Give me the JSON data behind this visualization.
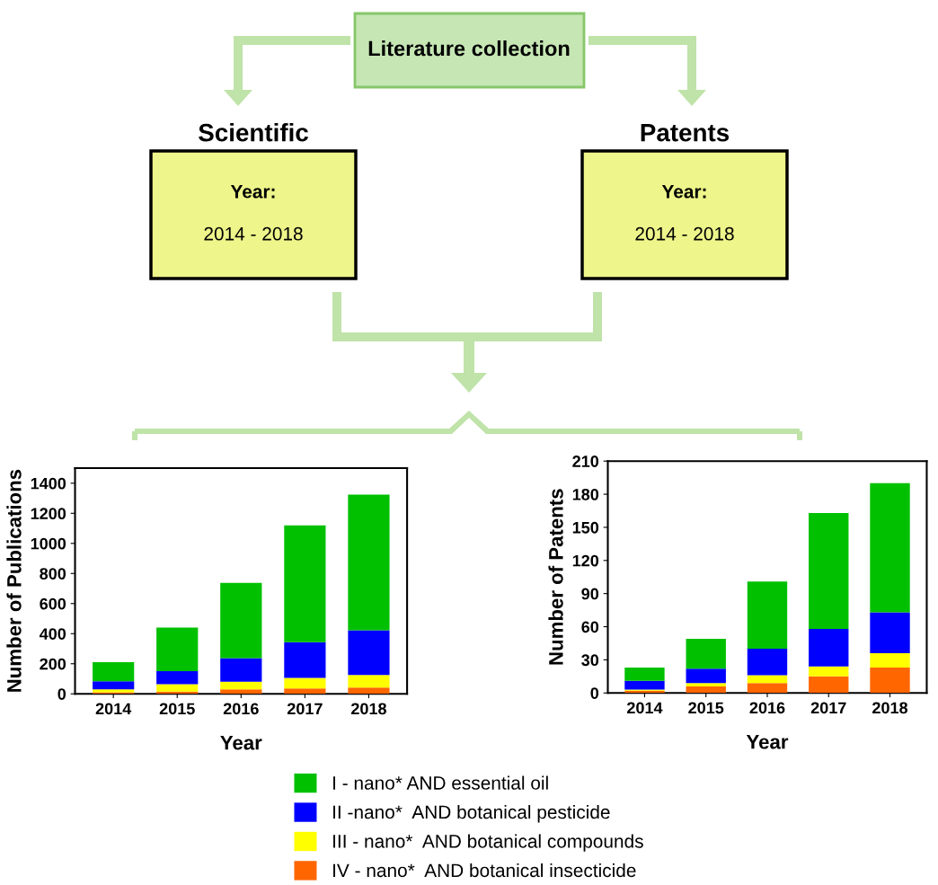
{
  "chart_data": [
    {
      "type": "other",
      "title": "Literature collection",
      "annotations": [
        "Scientific",
        "Year:",
        "2014 - 2018",
        "Patents",
        "Year:",
        "2014 - 2018"
      ]
    },
    {
      "type": "bar",
      "stacked": true,
      "categories": [
        "2014",
        "2015",
        "2016",
        "2017",
        "2018"
      ],
      "xlabel": "Year",
      "ylabel": "Number of Publications",
      "ylim": [
        0,
        1500
      ],
      "yticks": [
        0,
        200,
        400,
        600,
        800,
        1000,
        1200,
        1400
      ],
      "grid": false,
      "series": [
        {
          "color": "#ff6600",
          "values": [
            10,
            15,
            30,
            36,
            42
          ]
        },
        {
          "color": "#ffff00",
          "values": [
            20,
            49,
            50,
            70,
            84
          ]
        },
        {
          "color": "#0000ff",
          "values": [
            54,
            86,
            157,
            237,
            297
          ]
        },
        {
          "color": "#00c000",
          "values": [
            127,
            291,
            501,
            776,
            901
          ]
        }
      ]
    },
    {
      "type": "bar",
      "stacked": true,
      "categories": [
        "2014",
        "2015",
        "2016",
        "2017",
        "2018"
      ],
      "xlabel": "Year",
      "ylabel": "Number of Patents",
      "ylim": [
        0,
        210
      ],
      "yticks": [
        0,
        30,
        60,
        90,
        120,
        150,
        180,
        210
      ],
      "grid": false,
      "legend": "bottom",
      "series": [
        {
          "name": "IV - nano*  AND botanical insecticide",
          "color": "#ff6600",
          "values": [
            2,
            6,
            9,
            15,
            23
          ]
        },
        {
          "name": "III - nano*  AND botanical compounds",
          "color": "#ffff00",
          "values": [
            1,
            3,
            7,
            9,
            13
          ]
        },
        {
          "name": "II -nano*  AND botanical pesticide",
          "color": "#0000ff",
          "values": [
            8,
            13,
            24,
            34,
            37
          ]
        },
        {
          "name": "I - nano* AND essential oil",
          "color": "#00c000",
          "values": [
            12,
            27,
            61,
            105,
            117
          ]
        }
      ]
    }
  ]
}
